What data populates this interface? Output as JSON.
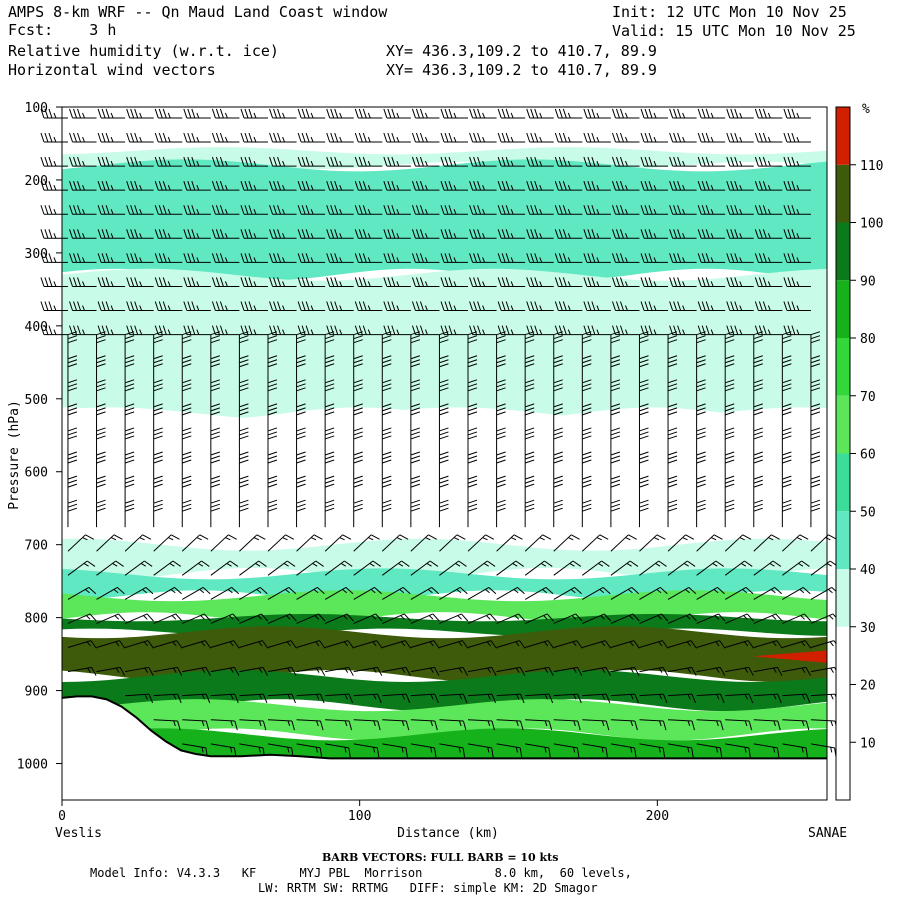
{
  "header": {
    "title": "AMPS 8-km WRF -- Qn Maud Land Coast window",
    "fcst_label": "Fcst:",
    "fcst_value": "3 h",
    "field1": "Relative humidity (w.r.t. ice)",
    "field2": "Horizontal wind vectors",
    "xy1": "XY= 436.3,109.2 to 410.7, 89.9",
    "xy2": "XY= 436.3,109.2 to 410.7, 89.9",
    "init": "Init: 12 UTC Mon 10 Nov 25",
    "valid": "Valid: 15 UTC Mon 10 Nov 25"
  },
  "footer": {
    "left_location": "Veslis",
    "right_location": "SANAE",
    "barb_note": "BARB VECTORS:  FULL BARB = 10 kts",
    "model_info_1": "Model Info: V4.3.3   KF      MYJ PBL  Morrison          8.0 km,  60 levels,",
    "model_info_2": "LW: RRTM SW: RRTMG   DIFF: simple KM: 2D Smagor"
  },
  "colors": {
    "below_30": "#ffffff",
    "30_40": "#c8fbe8",
    "40_50": "#5fe8c2",
    "50_60": "#3cdc9a",
    "60_70": "#5ce65a",
    "70_80": "#32d83a",
    "80_90": "#16b21c",
    "90_100": "#0a7a1a",
    "100_110": "#3e5b0c",
    "above_110": "#d02000"
  },
  "chart_data": {
    "type": "heatmap",
    "title": "Relative humidity (w.r.t. ice)",
    "xlabel": "Distance (km)",
    "ylabel": "Pressure (hPa)",
    "xlim": [
      0,
      257
    ],
    "ylim": [
      1050,
      100
    ],
    "x_ticks": [
      0,
      100,
      200
    ],
    "y_ticks": [
      100,
      200,
      300,
      400,
      500,
      600,
      700,
      800,
      900,
      1000
    ],
    "colorbar": {
      "unit": "%",
      "levels": [
        10,
        20,
        30,
        40,
        50,
        60,
        70,
        80,
        90,
        100,
        110
      ]
    },
    "terrain_surface_hpa": {
      "x": [
        0,
        5,
        10,
        15,
        20,
        25,
        30,
        35,
        40,
        45,
        50,
        60,
        70,
        80,
        90,
        100,
        120,
        150,
        180,
        210,
        240,
        257
      ],
      "p": [
        910,
        908,
        908,
        912,
        922,
        937,
        955,
        970,
        982,
        987,
        990,
        990,
        988,
        990,
        993,
        993,
        993,
        993,
        993,
        993,
        993,
        993
      ]
    },
    "rh_bands": [
      {
        "range": "below_30",
        "p_top": 100,
        "p_bottom": 160
      },
      {
        "range": "30_40",
        "p_top": 160,
        "p_bottom": 180
      },
      {
        "range": "40_50",
        "p_top": 180,
        "p_bottom": 330
      },
      {
        "range": "30_40",
        "p_top": 330,
        "p_bottom": 520
      },
      {
        "range": "below_30",
        "p_top": 520,
        "p_bottom": 700
      },
      {
        "range": "30_40",
        "p_top": 700,
        "p_bottom": 740
      },
      {
        "range": "40_50",
        "p_top": 740,
        "p_bottom": 770
      },
      {
        "range": "60_70",
        "p_top": 770,
        "p_bottom": 800
      },
      {
        "range": "90_100",
        "p_top": 800,
        "p_bottom": 820
      },
      {
        "range": "100_110",
        "p_top": 820,
        "p_bottom": 880
      },
      {
        "range": "90_100",
        "p_top": 880,
        "p_bottom": 920
      },
      {
        "range": "60_70",
        "p_top": 920,
        "p_bottom": 960
      },
      {
        "range": "80_90",
        "p_top": 960,
        "p_bottom": 1000
      }
    ],
    "rh_max_region": {
      "range": "above_110",
      "x": [
        232,
        257
      ],
      "p": [
        845,
        862
      ]
    },
    "wind_barbs": {
      "full_barb_kts": 10,
      "upper_dir": "west",
      "upper_speed_kts": 35,
      "mid_dir": "north",
      "mid_speed_kts": 30,
      "low_dir": "northeast",
      "low_speed_kts": 15
    }
  }
}
